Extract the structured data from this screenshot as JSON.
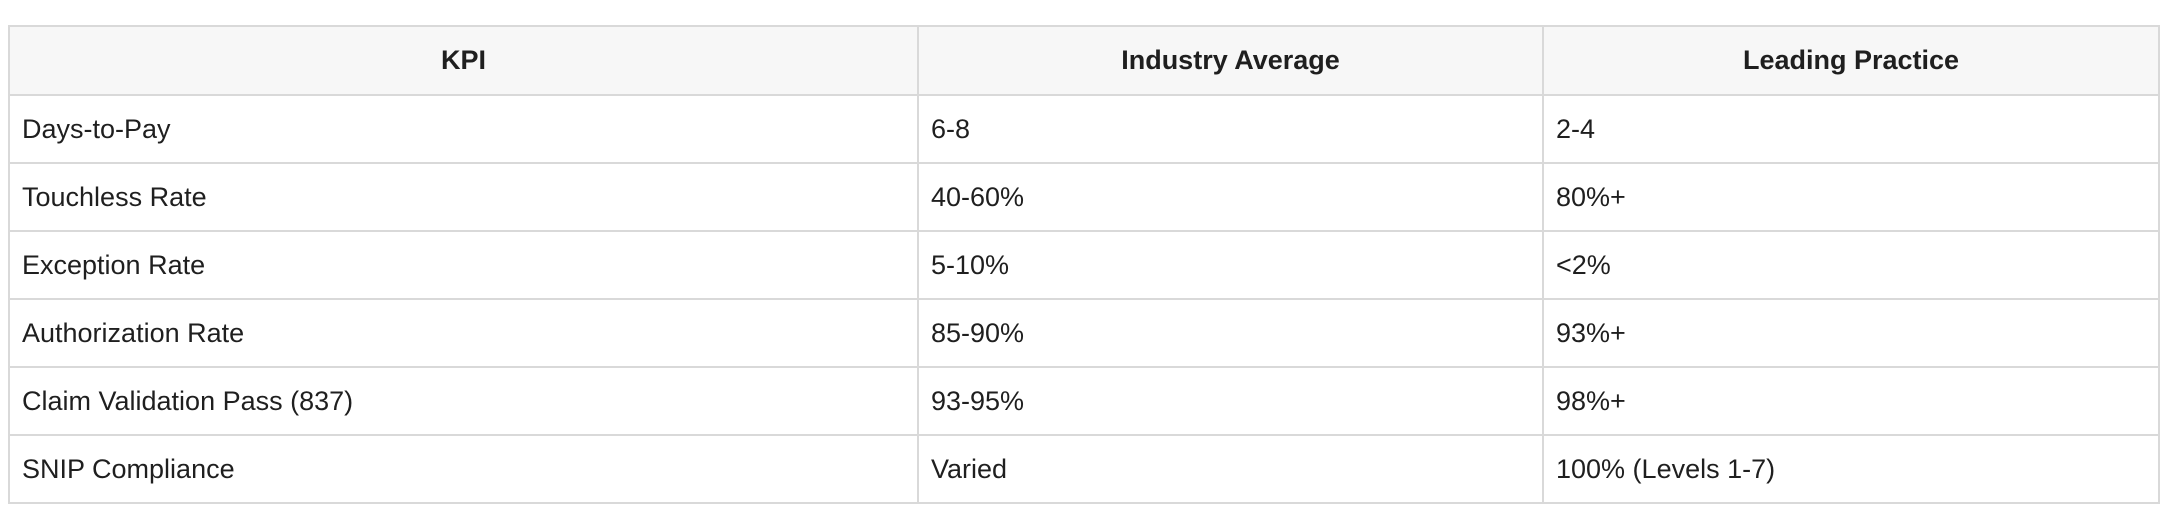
{
  "table": {
    "columns": [
      "KPI",
      "Industry Average",
      "Leading Practice"
    ],
    "rows": [
      [
        "Days-to-Pay",
        "6-8",
        "2-4"
      ],
      [
        "Touchless Rate",
        "40-60%",
        "80%+"
      ],
      [
        "Exception Rate",
        "5-10%",
        "<2%"
      ],
      [
        "Authorization Rate",
        "85-90%",
        "93%+"
      ],
      [
        "Claim Validation Pass (837)",
        "93-95%",
        "98%+"
      ],
      [
        "SNIP Compliance",
        "Varied",
        "100% (Levels 1-7)"
      ]
    ]
  }
}
